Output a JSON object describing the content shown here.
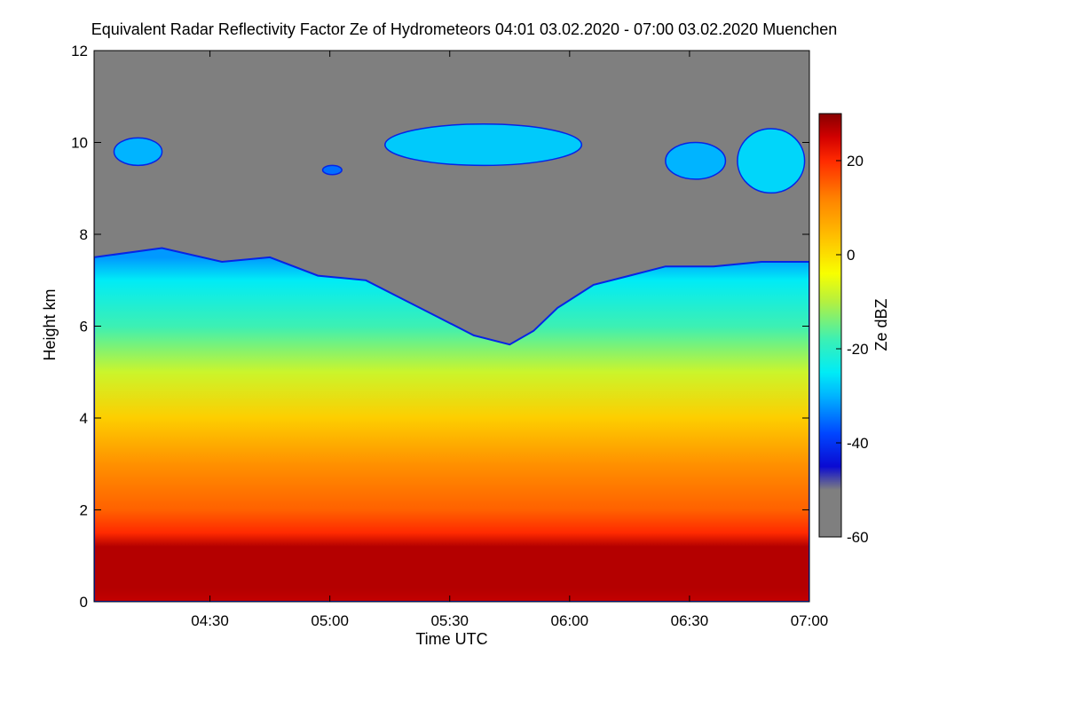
{
  "chart_data": {
    "type": "heatmap",
    "title": "Equivalent Radar Reflectivity Factor Ze of Hydrometeors   04:01 03.02.2020 - 07:00 03.02.2020 Muenchen",
    "xlabel": "Time UTC",
    "ylabel": "Height km",
    "colorbar_label": "Ze dBZ",
    "x_range_hours": [
      4.0167,
      7.0
    ],
    "x_ticks": [
      {
        "hours": 4.5,
        "label": "04:30"
      },
      {
        "hours": 5.0,
        "label": "05:00"
      },
      {
        "hours": 5.5,
        "label": "05:30"
      },
      {
        "hours": 6.0,
        "label": "06:00"
      },
      {
        "hours": 6.5,
        "label": "06:30"
      },
      {
        "hours": 7.0,
        "label": "07:00"
      }
    ],
    "y_range_km": [
      0,
      12
    ],
    "y_ticks": [
      0,
      2,
      4,
      6,
      8,
      10,
      12
    ],
    "colorbar_range_dbz": [
      -60,
      30
    ],
    "colorbar_ticks": [
      {
        "value": 20,
        "label": "20"
      },
      {
        "value": 0,
        "label": "0"
      },
      {
        "value": -20,
        "label": "-20"
      },
      {
        "value": -40,
        "label": "-40"
      },
      {
        "value": -60,
        "label": "-60"
      }
    ],
    "colormap": [
      {
        "value": -60,
        "color": "#7f7f7f"
      },
      {
        "value": -50,
        "color": "#7f7f7f"
      },
      {
        "value": -45,
        "color": "#0a0ad2"
      },
      {
        "value": -38,
        "color": "#0046ff"
      },
      {
        "value": -30,
        "color": "#00b4ff"
      },
      {
        "value": -25,
        "color": "#00ecf6"
      },
      {
        "value": -18,
        "color": "#3cf0b4"
      },
      {
        "value": -10,
        "color": "#b4f040"
      },
      {
        "value": -4,
        "color": "#f8ff00"
      },
      {
        "value": 4,
        "color": "#ffbe00"
      },
      {
        "value": 12,
        "color": "#ff8200"
      },
      {
        "value": 20,
        "color": "#ff2a00"
      },
      {
        "value": 25,
        "color": "#d20000"
      },
      {
        "value": 30,
        "color": "#870000"
      }
    ],
    "background_color": "#7f7f7f",
    "echo_top_km": [
      {
        "hours": 4.017,
        "top": 7.5
      },
      {
        "hours": 4.3,
        "top": 7.7
      },
      {
        "hours": 4.55,
        "top": 7.4
      },
      {
        "hours": 4.75,
        "top": 7.5
      },
      {
        "hours": 4.95,
        "top": 7.1
      },
      {
        "hours": 5.15,
        "top": 7.0
      },
      {
        "hours": 5.3,
        "top": 6.6
      },
      {
        "hours": 5.45,
        "top": 6.2
      },
      {
        "hours": 5.6,
        "top": 5.8
      },
      {
        "hours": 5.75,
        "top": 5.6
      },
      {
        "hours": 5.85,
        "top": 5.9
      },
      {
        "hours": 5.95,
        "top": 6.4
      },
      {
        "hours": 6.1,
        "top": 6.9
      },
      {
        "hours": 6.25,
        "top": 7.1
      },
      {
        "hours": 6.4,
        "top": 7.3
      },
      {
        "hours": 6.6,
        "top": 7.3
      },
      {
        "hours": 6.8,
        "top": 7.4
      },
      {
        "hours": 7.0,
        "top": 7.4
      }
    ],
    "reflectivity_layers": [
      {
        "height_km": 0.0,
        "dbz": 26
      },
      {
        "height_km": 0.3,
        "dbz": 27
      },
      {
        "height_km": 1.2,
        "dbz": 27
      },
      {
        "height_km": 1.5,
        "dbz": 20
      },
      {
        "height_km": 2.0,
        "dbz": 15
      },
      {
        "height_km": 3.0,
        "dbz": 10
      },
      {
        "height_km": 4.0,
        "dbz": 2
      },
      {
        "height_km": 5.0,
        "dbz": -8
      },
      {
        "height_km": 6.0,
        "dbz": -18
      },
      {
        "height_km": 7.0,
        "dbz": -25
      },
      {
        "height_km": 7.5,
        "dbz": -32
      }
    ],
    "upper_cloud_patches": [
      {
        "hours_start": 4.1,
        "hours_end": 4.3,
        "height_top_km": 10.1,
        "height_bottom_km": 9.5,
        "dbz": -30
      },
      {
        "hours_start": 4.97,
        "hours_end": 5.05,
        "height_top_km": 9.5,
        "height_bottom_km": 9.3,
        "dbz": -35
      },
      {
        "hours_start": 5.23,
        "hours_end": 6.05,
        "height_top_km": 10.4,
        "height_bottom_km": 9.5,
        "dbz": -28
      },
      {
        "hours_start": 6.4,
        "hours_end": 6.65,
        "height_top_km": 10.0,
        "height_bottom_km": 9.2,
        "dbz": -30
      },
      {
        "hours_start": 6.7,
        "hours_end": 6.98,
        "height_top_km": 10.3,
        "height_bottom_km": 8.9,
        "dbz": -27
      }
    ]
  }
}
